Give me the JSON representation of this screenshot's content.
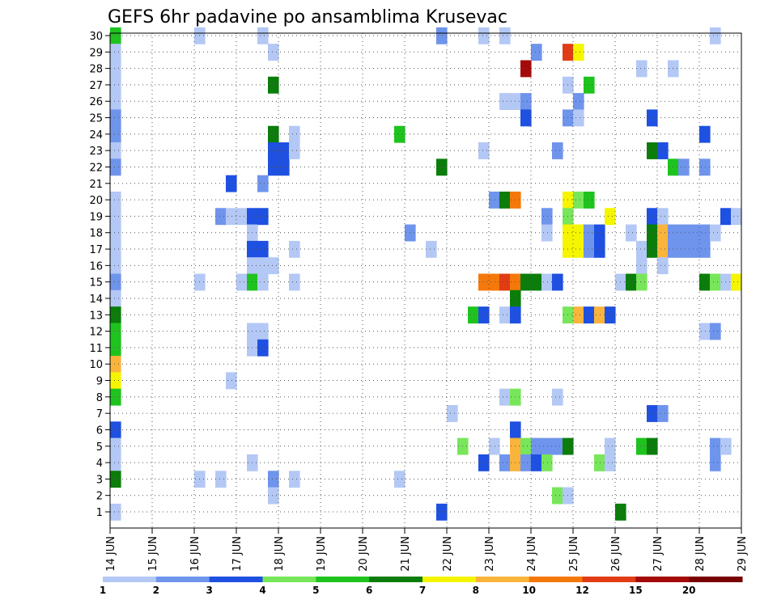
{
  "chart_data": {
    "type": "heatmap",
    "title": "GEFS 6hr padavine po ansamblima Krusevac",
    "xlabel": "",
    "ylabel": "",
    "x_start_day": 14,
    "x_end_day": 29,
    "x_step_hours": 6,
    "x_ticks": [
      "14 JUN",
      "15 JUN",
      "16 JUN",
      "17 JUN",
      "18 JUN",
      "19 JUN",
      "20 JUN",
      "21 JUN",
      "22 JUN",
      "23 JUN",
      "24 JUN",
      "25 JUN",
      "26 JUN",
      "27 JUN",
      "28 JUN",
      "29 JUN"
    ],
    "y_ticks": [
      "1",
      "2",
      "3",
      "4",
      "5",
      "6",
      "7",
      "8",
      "9",
      "10",
      "11",
      "12",
      "13",
      "14",
      "15",
      "16",
      "17",
      "18",
      "19",
      "20",
      "21",
      "22",
      "23",
      "24",
      "25",
      "26",
      "27",
      "28",
      "29",
      "30"
    ],
    "ylim": [
      1,
      30
    ],
    "grid": true,
    "colorbar": {
      "labels": [
        "1",
        "2",
        "3",
        "4",
        "5",
        "6",
        "7",
        "8",
        "10",
        "12",
        "15",
        "20"
      ],
      "colors": [
        "#b4c8f5",
        "#6f94ec",
        "#1e50e1",
        "#78e65a",
        "#1ec31e",
        "#0a7d0a",
        "#f5f500",
        "#fab43c",
        "#f5780a",
        "#e13c14",
        "#a50a0a",
        "#780000"
      ]
    },
    "cells": [
      [
        14.0,
        30,
        5
      ],
      [
        14.0,
        29,
        1
      ],
      [
        14.0,
        28,
        1
      ],
      [
        14.0,
        27,
        1
      ],
      [
        14.0,
        26,
        1
      ],
      [
        14.0,
        25,
        2
      ],
      [
        14.0,
        24,
        2
      ],
      [
        14.0,
        23,
        1
      ],
      [
        14.0,
        22,
        2
      ],
      [
        14.0,
        20,
        1
      ],
      [
        14.0,
        19,
        1
      ],
      [
        14.0,
        18,
        1
      ],
      [
        14.0,
        17,
        1
      ],
      [
        14.0,
        16,
        1
      ],
      [
        14.0,
        15,
        2
      ],
      [
        14.0,
        14,
        1
      ],
      [
        14.0,
        13,
        6
      ],
      [
        14.0,
        12,
        5
      ],
      [
        14.0,
        11,
        5
      ],
      [
        14.0,
        10,
        8
      ],
      [
        14.0,
        9,
        7
      ],
      [
        14.0,
        8,
        5
      ],
      [
        14.0,
        6,
        3
      ],
      [
        14.0,
        5,
        1
      ],
      [
        14.0,
        4,
        1
      ],
      [
        14.0,
        3,
        6
      ],
      [
        14.0,
        1,
        1
      ],
      [
        16.0,
        30,
        1
      ],
      [
        16.0,
        15,
        1
      ],
      [
        16.0,
        3,
        1
      ],
      [
        16.5,
        3,
        1
      ],
      [
        16.5,
        19,
        2
      ],
      [
        16.75,
        19,
        1
      ],
      [
        16.75,
        21,
        3
      ],
      [
        16.75,
        9,
        1
      ],
      [
        17.0,
        19,
        1
      ],
      [
        17.0,
        15,
        1
      ],
      [
        17.25,
        19,
        3
      ],
      [
        17.25,
        18,
        1
      ],
      [
        17.25,
        17,
        3
      ],
      [
        17.25,
        16,
        1
      ],
      [
        17.25,
        15,
        5
      ],
      [
        17.25,
        12,
        1
      ],
      [
        17.25,
        11,
        1
      ],
      [
        17.25,
        4,
        1
      ],
      [
        17.5,
        30,
        1
      ],
      [
        17.5,
        21,
        2
      ],
      [
        17.5,
        19,
        3
      ],
      [
        17.5,
        17,
        3
      ],
      [
        17.5,
        16,
        1
      ],
      [
        17.5,
        15,
        1
      ],
      [
        17.5,
        12,
        1
      ],
      [
        17.5,
        11,
        3
      ],
      [
        17.75,
        29,
        1
      ],
      [
        17.75,
        27,
        6
      ],
      [
        17.75,
        24,
        6
      ],
      [
        17.75,
        23,
        3
      ],
      [
        17.75,
        22,
        3
      ],
      [
        17.75,
        16,
        1
      ],
      [
        17.75,
        3,
        2
      ],
      [
        17.75,
        2,
        1
      ],
      [
        18.0,
        23,
        3
      ],
      [
        18.0,
        22,
        3
      ],
      [
        18.25,
        24,
        1
      ],
      [
        18.25,
        23,
        1
      ],
      [
        18.25,
        17,
        1
      ],
      [
        18.25,
        15,
        1
      ],
      [
        18.25,
        3,
        1
      ],
      [
        20.75,
        24,
        5
      ],
      [
        20.75,
        3,
        1
      ],
      [
        21.0,
        18,
        2
      ],
      [
        21.5,
        17,
        1
      ],
      [
        21.75,
        30,
        2
      ],
      [
        21.75,
        22,
        6
      ],
      [
        21.75,
        1,
        3
      ],
      [
        22.0,
        7,
        1
      ],
      [
        22.25,
        5,
        4
      ],
      [
        22.5,
        13,
        5
      ],
      [
        22.75,
        30,
        1
      ],
      [
        22.75,
        23,
        1
      ],
      [
        22.75,
        15,
        9
      ],
      [
        22.75,
        13,
        3
      ],
      [
        22.75,
        4,
        3
      ],
      [
        23.0,
        20,
        2
      ],
      [
        23.0,
        15,
        9
      ],
      [
        23.0,
        5,
        1
      ],
      [
        23.25,
        30,
        1
      ],
      [
        23.25,
        26,
        1
      ],
      [
        23.25,
        20,
        6
      ],
      [
        23.25,
        15,
        10
      ],
      [
        23.25,
        13,
        1
      ],
      [
        23.25,
        8,
        1
      ],
      [
        23.25,
        4,
        2
      ],
      [
        23.5,
        26,
        1
      ],
      [
        23.5,
        20,
        9
      ],
      [
        23.5,
        15,
        9
      ],
      [
        23.5,
        14,
        6
      ],
      [
        23.5,
        13,
        3
      ],
      [
        23.5,
        8,
        4
      ],
      [
        23.5,
        6,
        3
      ],
      [
        23.5,
        5,
        8
      ],
      [
        23.5,
        4,
        8
      ],
      [
        23.75,
        28,
        11
      ],
      [
        23.75,
        26,
        2
      ],
      [
        23.75,
        25,
        3
      ],
      [
        23.75,
        15,
        6
      ],
      [
        23.75,
        5,
        4
      ],
      [
        23.75,
        4,
        2
      ],
      [
        24.0,
        29,
        2
      ],
      [
        24.0,
        15,
        6
      ],
      [
        24.0,
        5,
        2
      ],
      [
        24.0,
        4,
        3
      ],
      [
        24.25,
        19,
        2
      ],
      [
        24.25,
        18,
        1
      ],
      [
        24.25,
        15,
        1
      ],
      [
        24.25,
        5,
        2
      ],
      [
        24.25,
        4,
        4
      ],
      [
        24.5,
        23,
        2
      ],
      [
        24.5,
        15,
        3
      ],
      [
        24.5,
        8,
        1
      ],
      [
        24.5,
        5,
        2
      ],
      [
        24.5,
        2,
        4
      ],
      [
        24.75,
        29,
        10
      ],
      [
        24.75,
        27,
        1
      ],
      [
        24.75,
        25,
        2
      ],
      [
        24.75,
        20,
        7
      ],
      [
        24.75,
        19,
        4
      ],
      [
        24.75,
        18,
        7
      ],
      [
        24.75,
        17,
        7
      ],
      [
        24.75,
        13,
        4
      ],
      [
        24.75,
        5,
        6
      ],
      [
        24.75,
        2,
        1
      ],
      [
        25.0,
        29,
        7
      ],
      [
        25.0,
        26,
        2
      ],
      [
        25.0,
        25,
        1
      ],
      [
        25.0,
        20,
        4
      ],
      [
        25.0,
        18,
        7
      ],
      [
        25.0,
        17,
        7
      ],
      [
        25.0,
        13,
        8
      ],
      [
        25.25,
        27,
        5
      ],
      [
        25.25,
        20,
        5
      ],
      [
        25.25,
        18,
        2
      ],
      [
        25.25,
        17,
        2
      ],
      [
        25.25,
        13,
        3
      ],
      [
        25.5,
        18,
        3
      ],
      [
        25.5,
        17,
        3
      ],
      [
        25.5,
        13,
        8
      ],
      [
        25.5,
        4,
        4
      ],
      [
        25.75,
        19,
        7
      ],
      [
        25.75,
        13,
        3
      ],
      [
        25.75,
        5,
        1
      ],
      [
        25.75,
        4,
        1
      ],
      [
        26.0,
        1,
        6
      ],
      [
        26.0,
        15,
        1
      ],
      [
        26.25,
        18,
        1
      ],
      [
        26.25,
        15,
        6
      ],
      [
        26.5,
        28,
        1
      ],
      [
        26.5,
        17,
        1
      ],
      [
        26.5,
        16,
        1
      ],
      [
        26.5,
        15,
        4
      ],
      [
        26.5,
        5,
        5
      ],
      [
        26.75,
        25,
        3
      ],
      [
        26.75,
        23,
        6
      ],
      [
        26.75,
        19,
        3
      ],
      [
        26.75,
        18,
        6
      ],
      [
        26.75,
        17,
        6
      ],
      [
        26.75,
        7,
        3
      ],
      [
        26.75,
        5,
        6
      ],
      [
        27.0,
        23,
        3
      ],
      [
        27.0,
        19,
        1
      ],
      [
        27.0,
        18,
        8
      ],
      [
        27.0,
        17,
        8
      ],
      [
        27.0,
        16,
        1
      ],
      [
        27.0,
        7,
        2
      ],
      [
        27.25,
        28,
        1
      ],
      [
        27.25,
        22,
        5
      ],
      [
        27.25,
        18,
        2
      ],
      [
        27.25,
        17,
        2
      ],
      [
        27.5,
        22,
        2
      ],
      [
        27.5,
        18,
        2
      ],
      [
        27.5,
        17,
        2
      ],
      [
        27.75,
        18,
        2
      ],
      [
        27.75,
        17,
        2
      ],
      [
        28.0,
        24,
        3
      ],
      [
        28.0,
        22,
        2
      ],
      [
        28.0,
        18,
        2
      ],
      [
        28.0,
        17,
        2
      ],
      [
        28.0,
        15,
        6
      ],
      [
        28.0,
        12,
        1
      ],
      [
        28.25,
        30,
        1
      ],
      [
        28.25,
        18,
        1
      ],
      [
        28.25,
        15,
        4
      ],
      [
        28.25,
        12,
        2
      ],
      [
        28.25,
        5,
        2
      ],
      [
        28.25,
        4,
        2
      ],
      [
        28.5,
        19,
        3
      ],
      [
        28.5,
        15,
        1
      ],
      [
        28.5,
        5,
        1
      ],
      [
        28.75,
        19,
        1
      ],
      [
        28.75,
        15,
        7
      ]
    ]
  }
}
